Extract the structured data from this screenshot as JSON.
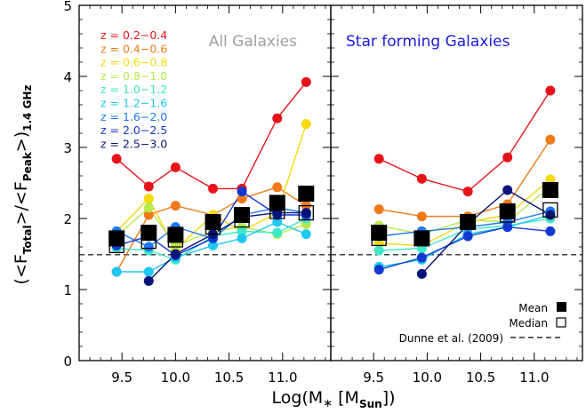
{
  "chart_data": [
    {
      "type": "line",
      "panel_title": "All Galaxies",
      "panel_title_color": "#a0a0a0",
      "xlim": [
        9.1,
        11.45
      ],
      "ylim": [
        0,
        5
      ],
      "xticks": [
        "9.5",
        "10.0",
        "10.5",
        "11.0"
      ],
      "yticks": [
        "0",
        "1",
        "2",
        "3",
        "4",
        "5"
      ],
      "series": [
        {
          "name": "z = 0.2−0.4",
          "color": "#e8131a",
          "x": [
            9.45,
            9.75,
            10.0,
            10.35,
            10.62,
            10.95,
            11.22
          ],
          "y": [
            2.84,
            2.45,
            2.72,
            2.42,
            2.42,
            3.41,
            3.92
          ]
        },
        {
          "name": "z = 0.4−0.6",
          "color": "#f07a1a",
          "x": [
            9.45,
            9.75,
            10.0,
            10.35,
            10.62,
            10.95,
            11.22
          ],
          "y": [
            1.25,
            2.05,
            2.18,
            2.05,
            2.28,
            2.44,
            2.18
          ]
        },
        {
          "name": "z = 0.6−0.8",
          "color": "#f5d80e",
          "x": [
            9.45,
            9.75,
            10.0,
            10.35,
            10.62,
            10.95,
            11.22
          ],
          "y": [
            1.82,
            2.28,
            1.56,
            2.05,
            1.82,
            2.08,
            3.33
          ]
        },
        {
          "name": "z = 0.8−1.0",
          "color": "#b8e84c",
          "x": [
            9.45,
            9.75,
            10.0,
            10.35,
            10.62,
            10.95,
            11.22
          ],
          "y": [
            1.75,
            2.15,
            1.62,
            1.82,
            1.88,
            1.78,
            1.92
          ]
        },
        {
          "name": "z = 1.0−1.2",
          "color": "#3ee8c8",
          "x": [
            9.45,
            9.75,
            10.0,
            10.35,
            10.62,
            10.95,
            11.22
          ],
          "y": [
            1.58,
            1.55,
            1.42,
            1.75,
            1.82,
            1.8,
            2.0
          ]
        },
        {
          "name": "z = 1.2−1.6",
          "color": "#1ec8f0",
          "x": [
            9.45,
            9.75,
            10.0,
            10.35,
            10.62,
            10.95,
            11.22
          ],
          "y": [
            1.25,
            1.25,
            1.45,
            1.62,
            1.72,
            1.95,
            1.78
          ]
        },
        {
          "name": "z = 1.6−2.0",
          "color": "#1e78f0",
          "x": [
            9.45,
            9.75,
            10.0,
            10.35,
            10.62,
            10.95,
            11.22
          ],
          "y": [
            1.82,
            1.6,
            1.88,
            1.72,
            2.05,
            2.15,
            2.08
          ]
        },
        {
          "name": "z = 2.0−2.5",
          "color": "#1238d0",
          "x": [
            9.45,
            9.75,
            10.0,
            10.35,
            10.62,
            10.95,
            11.22
          ],
          "y": [
            1.62,
            1.75,
            1.48,
            1.72,
            2.38,
            2.05,
            2.05
          ]
        },
        {
          "name": "z = 2.5−3.0",
          "color": "#0a1478",
          "x": [
            9.75,
            10.0,
            10.35,
            10.62,
            10.95,
            11.22
          ],
          "y": [
            1.12,
            1.5,
            1.78,
            2.02,
            2.08,
            2.08
          ]
        }
      ],
      "mean_points": {
        "x": [
          9.45,
          9.75,
          10.0,
          10.35,
          10.62,
          10.95,
          11.22
        ],
        "y": [
          1.72,
          1.8,
          1.77,
          1.95,
          2.05,
          2.22,
          2.35
        ]
      },
      "median_points": {
        "x": [
          9.45,
          9.75,
          10.0,
          10.35,
          10.62,
          10.95,
          11.22
        ],
        "y": [
          1.62,
          1.68,
          1.7,
          1.88,
          1.98,
          2.1,
          2.08
        ]
      },
      "reference_line": {
        "y": 1.49
      }
    },
    {
      "type": "line",
      "panel_title": "Star forming Galaxies",
      "panel_title_color": "#1a1adc",
      "xlim": [
        9.1,
        11.45
      ],
      "ylim": [
        0,
        5
      ],
      "xticks": [
        "9.5",
        "10.0",
        "10.5",
        "11.0"
      ],
      "yticks": [],
      "series": [
        {
          "name": "z = 0.2−0.4",
          "color": "#e8131a",
          "x": [
            9.55,
            9.95,
            10.38,
            10.75,
            11.15
          ],
          "y": [
            2.84,
            2.56,
            2.38,
            2.86,
            3.8
          ]
        },
        {
          "name": "z = 0.4−0.6",
          "color": "#f07a1a",
          "x": [
            9.55,
            9.95,
            10.38,
            10.75,
            11.15
          ],
          "y": [
            2.13,
            2.03,
            2.03,
            2.2,
            3.11
          ]
        },
        {
          "name": "z = 0.6−0.8",
          "color": "#f5d80e",
          "x": [
            9.55,
            9.95,
            10.38,
            10.75,
            11.15
          ],
          "y": [
            1.65,
            1.62,
            1.95,
            2.05,
            2.55
          ]
        },
        {
          "name": "z = 0.8−1.0",
          "color": "#b8e84c",
          "x": [
            9.55,
            9.95,
            10.38,
            10.75,
            11.15
          ],
          "y": [
            1.9,
            1.78,
            1.98,
            1.95,
            2.45
          ]
        },
        {
          "name": "z = 1.0−1.2",
          "color": "#3ee8c8",
          "x": [
            9.55,
            9.95,
            10.38,
            10.75,
            11.15
          ],
          "y": [
            1.55,
            1.58,
            1.85,
            1.9,
            2.0
          ]
        },
        {
          "name": "z = 1.2−1.6",
          "color": "#1ec8f0",
          "x": [
            9.55,
            9.95,
            10.38,
            10.75,
            11.15
          ],
          "y": [
            1.32,
            1.42,
            1.78,
            1.88,
            2.05
          ]
        },
        {
          "name": "z = 1.6−2.0",
          "color": "#1e78f0",
          "x": [
            9.55,
            9.95,
            10.38,
            10.75,
            11.15
          ],
          "y": [
            1.75,
            1.82,
            1.88,
            1.95,
            2.1
          ]
        },
        {
          "name": "z = 2.0−2.5",
          "color": "#1238d0",
          "x": [
            9.55,
            9.95,
            10.38,
            10.75,
            11.15
          ],
          "y": [
            1.28,
            1.45,
            1.75,
            1.88,
            1.82
          ]
        },
        {
          "name": "z = 2.5−3.0",
          "color": "#0a1478",
          "x": [
            9.95,
            10.38,
            10.75,
            11.15
          ],
          "y": [
            1.22,
            1.92,
            2.4,
            2.05
          ]
        }
      ],
      "mean_points": {
        "x": [
          9.55,
          9.95,
          10.38,
          10.75,
          11.15
        ],
        "y": [
          1.8,
          1.72,
          1.95,
          2.1,
          2.4
        ]
      },
      "median_points": {
        "x": [
          9.55,
          9.95,
          10.38,
          10.75,
          11.15
        ],
        "y": [
          1.72,
          1.72,
          1.95,
          2.05,
          2.12
        ]
      },
      "reference_line": {
        "y": 1.49
      }
    }
  ],
  "axes": {
    "xlabel_main": "Log(M",
    "xlabel_star": "∗",
    "xlabel_mid": " [M",
    "xlabel_sub": "Sun",
    "xlabel_end": "])",
    "ylabel_a": "(<F",
    "ylabel_sub_a": "Total",
    "ylabel_b": ">/<F",
    "ylabel_sub_b": "Peak",
    "ylabel_c": ">)",
    "ylabel_sub_c": "1.4 GHz"
  },
  "legend": {
    "mean_label": "Mean",
    "median_label": "Median",
    "dunne_label": "Dunne et al. (2009)"
  }
}
